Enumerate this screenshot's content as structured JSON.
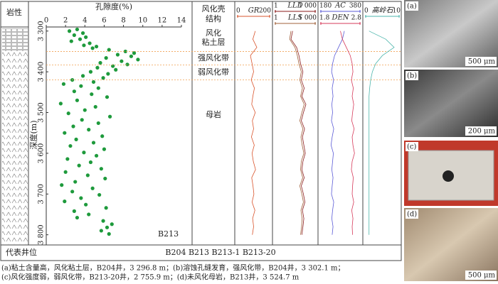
{
  "lithology_header": "岩性",
  "structure": {
    "header": [
      "风化壳",
      "结构"
    ],
    "zones": [
      [
        "风化",
        "粘土层"
      ],
      [
        "强风化带"
      ],
      [
        "弱风化带"
      ],
      [
        "母岩"
      ]
    ],
    "boundaries": [
      3350,
      3383,
      3420
    ]
  },
  "chart_data": [
    {
      "type": "scatter",
      "title": "孔隙度(%)",
      "y_label": "深度(m)",
      "xlim": [
        0,
        14
      ],
      "xticks": [
        0,
        2,
        4,
        6,
        8,
        10,
        12,
        14
      ],
      "ylim": [
        3290,
        3825
      ],
      "yticks": [
        {
          "value": 3300,
          "label": "3 300"
        },
        {
          "value": 3400,
          "label": "3 400"
        },
        {
          "value": 3500,
          "label": "3 500"
        },
        {
          "value": 3600,
          "label": "3 600"
        },
        {
          "value": 3700,
          "label": "3 700"
        },
        {
          "value": 3800,
          "label": "3 800"
        }
      ],
      "series": [
        {
          "name": "B213",
          "color": "#1e9a3c",
          "x": [
            3.2,
            2.4,
            3.8,
            2.9,
            4.1,
            3.5,
            2.6,
            4.5,
            3.9,
            5.2,
            4.8,
            6.5,
            8.2,
            9.1,
            7.4,
            8.8,
            6.2,
            9.5,
            7.8,
            5.6,
            8.4,
            6.9,
            5.3,
            7.2,
            4.6,
            6.4,
            3.8,
            5.9,
            2.7,
            4.9,
            1.8,
            3.6,
            5.4,
            2.9,
            4.7,
            6.3,
            3.2,
            1.5,
            5.1,
            4.0,
            2.3,
            6.6,
            3.7,
            5.4,
            2.8,
            4.4,
            1.9,
            5.8,
            3.1,
            4.9,
            2.5,
            6.0,
            3.9,
            5.2,
            2.2,
            4.6,
            3.4,
            5.7,
            2.0,
            4.3,
            6.1,
            3.0,
            1.6,
            4.8,
            2.7,
            5.5,
            3.6,
            1.9,
            4.1,
            6.2,
            2.9,
            4.4,
            3.2,
            5.9,
            6.8,
            6.3,
            5.7,
            6.5
          ],
          "values": [
            3296,
            3300,
            3305,
            3310,
            3315,
            3320,
            3325,
            3330,
            3335,
            3338,
            3342,
            3346,
            3350,
            3354,
            3358,
            3362,
            3366,
            3370,
            3374,
            3378,
            3382,
            3386,
            3390,
            3395,
            3400,
            3405,
            3410,
            3415,
            3420,
            3425,
            3430,
            3435,
            3440,
            3448,
            3455,
            3462,
            3470,
            3478,
            3486,
            3494,
            3502,
            3510,
            3518,
            3526,
            3534,
            3542,
            3550,
            3558,
            3566,
            3574,
            3582,
            3590,
            3598,
            3606,
            3614,
            3622,
            3630,
            3638,
            3646,
            3654,
            3662,
            3670,
            3678,
            3686,
            3694,
            3702,
            3710,
            3718,
            3726,
            3734,
            3742,
            3750,
            3758,
            3766,
            3774,
            3782,
            3790,
            3798
          ]
        }
      ]
    },
    {
      "type": "line",
      "ylim": [
        3290,
        3825
      ],
      "depth": [
        3300,
        3320,
        3340,
        3360,
        3380,
        3400,
        3420,
        3440,
        3460,
        3480,
        3500,
        3520,
        3540,
        3560,
        3580,
        3600,
        3620,
        3640,
        3660,
        3680,
        3700,
        3720,
        3740,
        3760,
        3780,
        3800
      ],
      "tracks": [
        {
          "series": [
            {
              "name": "GR",
              "color": "#d9542c",
              "log": false,
              "xlim": [
                0,
                200
              ],
              "xticks": [
                0,
                200
              ],
              "values": [
                110,
                95,
                120,
                80,
                90,
                100,
                85,
                105,
                95,
                88,
                110,
                92,
                100,
                86,
                104,
                90,
                98,
                112,
                88,
                96,
                102,
                90,
                108,
                94,
                100,
                92
              ]
            }
          ]
        },
        {
          "series": [
            {
              "name": "LLD",
              "color": "#8b1a1a",
              "log": true,
              "xlim": [
                1,
                1000
              ],
              "xticks": [
                1,
                {
                  "value": 1000,
                  "label": "1 000"
                }
              ],
              "values": [
                20,
                15,
                40,
                60,
                80,
                120,
                90,
                150,
                100,
                200,
                130,
                90,
                160,
                110,
                140,
                180,
                120,
                100,
                150,
                90,
                130,
                170,
                110,
                140,
                120,
                100
              ]
            },
            {
              "name": "LLS",
              "color": "#a0603a",
              "log": true,
              "xlim": [
                1,
                1000
              ],
              "xticks": [
                1,
                {
                  "value": 1000,
                  "label": "1 000"
                }
              ],
              "values": [
                15,
                12,
                30,
                45,
                60,
                90,
                70,
                110,
                80,
                150,
                100,
                70,
                120,
                85,
                105,
                140,
                90,
                80,
                115,
                70,
                100,
                130,
                85,
                105,
                95,
                80
              ]
            }
          ]
        },
        {
          "series": [
            {
              "name": "AC",
              "color": "#5b5bd6",
              "log": false,
              "xlim": [
                180,
                380
              ],
              "xticks": [
                180,
                380
              ],
              "values": [
                300,
                290,
                270,
                250,
                240,
                235,
                245,
                238,
                242,
                236,
                240,
                234,
                246,
                238,
                232,
                244,
                240,
                236,
                242,
                238,
                234,
                246,
                240,
                236,
                242,
                238
              ]
            },
            {
              "name": "DEN",
              "color": "#d63a5a",
              "log": false,
              "xlim": [
                1.8,
                2.8
              ],
              "xticks": [
                1.8,
                2.8
              ],
              "values": [
                2.3,
                2.35,
                2.45,
                2.55,
                2.6,
                2.62,
                2.58,
                2.63,
                2.6,
                2.64,
                2.61,
                2.59,
                2.65,
                2.6,
                2.62,
                2.66,
                2.6,
                2.58,
                2.63,
                2.61,
                2.6,
                2.64,
                2.59,
                2.62,
                2.6,
                2.61
              ]
            }
          ]
        },
        {
          "series": [
            {
              "name": "高岭石",
              "color": "#4db6ac",
              "log": false,
              "xlim": [
                0,
                10
              ],
              "xticks": [
                0,
                10
              ],
              "values": [
                1,
                6,
                8.5,
                5,
                3,
                2,
                1.5,
                1.2,
                1,
                1,
                1,
                1,
                1,
                1,
                1,
                1,
                1,
                1,
                1,
                1,
                1,
                1,
                1,
                1,
                1,
                1
              ]
            }
          ]
        }
      ]
    }
  ],
  "well_row": {
    "label": "代表井位",
    "wells": "B204 B213 B213-1 B213-20"
  },
  "caption": [
    "(a)粘土含量高，风化粘土层，B204井，3 296.8 m；(b)溶蚀孔缝发育，强风化带，B204井，3 302.1 m；",
    "(c)风化强度弱，弱风化带，B213-20井，2 755.9 m；(d)未风化母岩，B213井，3 524.7 m"
  ],
  "photos": [
    {
      "label": "(a)",
      "scale": "500 μm"
    },
    {
      "label": "(b)",
      "scale": "200 μm"
    },
    {
      "label": "(c)"
    },
    {
      "label": "(d)",
      "scale": "500 μm"
    }
  ]
}
